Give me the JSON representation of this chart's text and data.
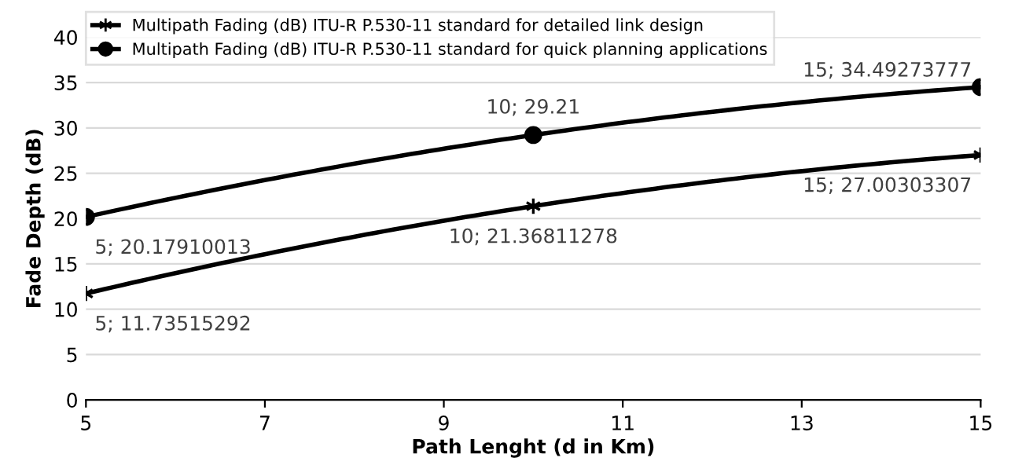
{
  "chart_data": {
    "type": "line",
    "xlabel": "Path Lenght (d in Km)",
    "ylabel": "Fade Depth (dB)",
    "x": [
      5,
      10,
      15
    ],
    "series": [
      {
        "name": "Multipath Fading (dB) ITU-R P.530-11 standard for detailed link design",
        "color": "#000000",
        "marker": "cross",
        "values": [
          11.73515292,
          21.36811278,
          27.00303307
        ],
        "value_labels": [
          "5; 11.73515292",
          "10; 21.36811278",
          "15; 27.00303307"
        ]
      },
      {
        "name": "Multipath Fading (dB) ITU-R P.530-11 standard for quick planning applications",
        "color": "#000000",
        "marker": "circle",
        "values": [
          20.17910013,
          29.21,
          34.49273777
        ],
        "value_labels": [
          "5; 20.17910013",
          "10; 29.21",
          "15; 34.49273777"
        ]
      }
    ],
    "xlim": [
      5,
      15
    ],
    "xticks": [
      5,
      7,
      9,
      11,
      13,
      15
    ],
    "ylim": [
      0,
      40
    ],
    "yticks": [
      0,
      5,
      10,
      15,
      20,
      25,
      30,
      35,
      40
    ],
    "grid": "y",
    "legend": "top left",
    "line_style": "solid"
  }
}
